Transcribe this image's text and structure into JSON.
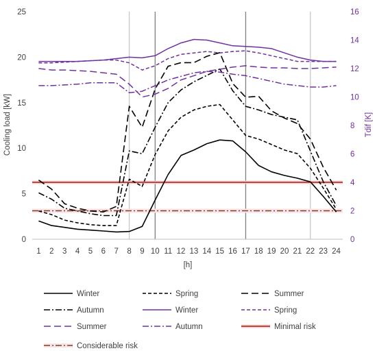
{
  "chart_data": {
    "type": "line",
    "title": "",
    "xlabel": "[h]",
    "ylabel": "Cooling load [kW]",
    "y2label": "Tdif [K]",
    "x": [
      1,
      2,
      3,
      4,
      5,
      6,
      7,
      8,
      9,
      10,
      11,
      12,
      13,
      14,
      15,
      16,
      17,
      18,
      19,
      20,
      21,
      22,
      23,
      24
    ],
    "xticks": [
      "1",
      "2",
      "3",
      "4",
      "5",
      "6",
      "7",
      "8",
      "9",
      "10",
      "11",
      "12",
      "13",
      "14",
      "15",
      "16",
      "17",
      "18",
      "19",
      "20",
      "21",
      "22",
      "23",
      "24"
    ],
    "ylim": [
      0,
      25
    ],
    "yticks": [
      "0",
      "5",
      "10",
      "15",
      "20",
      "25"
    ],
    "y2lim": [
      0,
      16
    ],
    "y2ticks": [
      "0",
      "2",
      "4",
      "6",
      "8",
      "10",
      "12",
      "14",
      "16"
    ],
    "grid": false,
    "legend_position": "bottom",
    "vertical_lines": [
      {
        "x": 8,
        "color": "#c8c8c8"
      },
      {
        "x": 10,
        "color": "#7f7f7f"
      },
      {
        "x": 17,
        "color": "#7f7f7f"
      },
      {
        "x": 22,
        "color": "#c8c8c8"
      }
    ],
    "series": [
      {
        "name": "Winter",
        "axis": "left",
        "color": "#000000",
        "dash": "solid",
        "values": [
          2.0,
          1.5,
          1.3,
          1.1,
          1.0,
          0.9,
          0.8,
          0.85,
          1.4,
          4.3,
          7.1,
          9.2,
          9.8,
          10.5,
          10.9,
          10.8,
          9.6,
          8.1,
          7.4,
          7.0,
          6.7,
          6.3,
          4.7,
          3.0
        ]
      },
      {
        "name": "Spring",
        "axis": "left",
        "color": "#000000",
        "dash": "short",
        "values": [
          3.1,
          2.7,
          2.1,
          1.8,
          1.6,
          1.5,
          1.5,
          6.6,
          5.8,
          9.3,
          11.9,
          13.4,
          14.2,
          14.6,
          14.8,
          13.1,
          11.4,
          11.0,
          10.4,
          9.8,
          9.4,
          7.8,
          5.6,
          3.3
        ]
      },
      {
        "name": "Summer",
        "axis": "left",
        "color": "#000000",
        "dash": "long",
        "values": [
          6.5,
          5.5,
          3.9,
          3.4,
          3.1,
          3.0,
          3.6,
          14.6,
          12.3,
          16.5,
          19.0,
          19.4,
          19.4,
          20.1,
          20.5,
          17.1,
          15.6,
          15.7,
          14.1,
          13.3,
          12.7,
          11.0,
          7.9,
          5.4
        ]
      },
      {
        "name": "Autumn",
        "axis": "left",
        "color": "#000000",
        "dash": "dashdot",
        "values": [
          5.1,
          4.4,
          3.4,
          3.1,
          2.8,
          2.6,
          2.6,
          9.7,
          9.4,
          12.3,
          15.0,
          16.4,
          17.3,
          18.0,
          18.7,
          16.3,
          14.6,
          14.2,
          13.7,
          13.4,
          13.1,
          9.7,
          6.3,
          3.7
        ]
      },
      {
        "name": "Winter",
        "axis": "right",
        "color": "#7030a0",
        "dash": "solid",
        "values": [
          12.5,
          12.5,
          12.5,
          12.5,
          12.55,
          12.6,
          12.7,
          12.8,
          12.75,
          12.9,
          13.4,
          13.8,
          14.05,
          14.0,
          13.8,
          13.6,
          13.55,
          13.5,
          13.4,
          13.1,
          12.8,
          12.6,
          12.5,
          12.5
        ]
      },
      {
        "name": "Spring",
        "axis": "right",
        "color": "#7030a0",
        "dash": "short",
        "values": [
          12.4,
          12.4,
          12.45,
          12.5,
          12.55,
          12.6,
          12.6,
          12.4,
          11.9,
          12.2,
          12.7,
          13.0,
          13.1,
          13.2,
          13.1,
          13.2,
          13.25,
          13.1,
          12.9,
          12.7,
          12.5,
          12.5,
          12.5,
          12.5
        ]
      },
      {
        "name": "Summer",
        "axis": "right",
        "color": "#7030a0",
        "dash": "long",
        "values": [
          12.0,
          11.9,
          11.9,
          11.85,
          11.8,
          11.7,
          11.6,
          10.9,
          10.0,
          10.2,
          10.6,
          11.2,
          11.5,
          11.8,
          11.95,
          12.1,
          12.2,
          12.1,
          12.05,
          12.05,
          12.0,
          12.0,
          12.05,
          12.1
        ]
      },
      {
        "name": "Autumn",
        "axis": "right",
        "color": "#7030a0",
        "dash": "dashdot",
        "values": [
          10.8,
          10.8,
          10.85,
          10.9,
          11.0,
          11.0,
          11.0,
          10.3,
          10.4,
          10.8,
          11.2,
          11.45,
          11.7,
          11.8,
          11.75,
          11.6,
          11.5,
          11.3,
          11.1,
          10.9,
          10.8,
          10.7,
          10.7,
          10.8
        ]
      }
    ],
    "reference_lines": [
      {
        "name": "Minimal risk",
        "axis": "right",
        "value": 4,
        "color": "#c0504d",
        "style": "solid"
      },
      {
        "name": "Considerable risk",
        "axis": "right",
        "value": 2,
        "color": "#c0504d",
        "style": "dashdot"
      }
    ],
    "legend_labels": [
      "Winter",
      "Spring",
      "Summer",
      "Autumn",
      "Winter",
      "Spring",
      "Summer",
      "Autumn",
      "Minimal risk",
      "Considerable risk"
    ]
  }
}
